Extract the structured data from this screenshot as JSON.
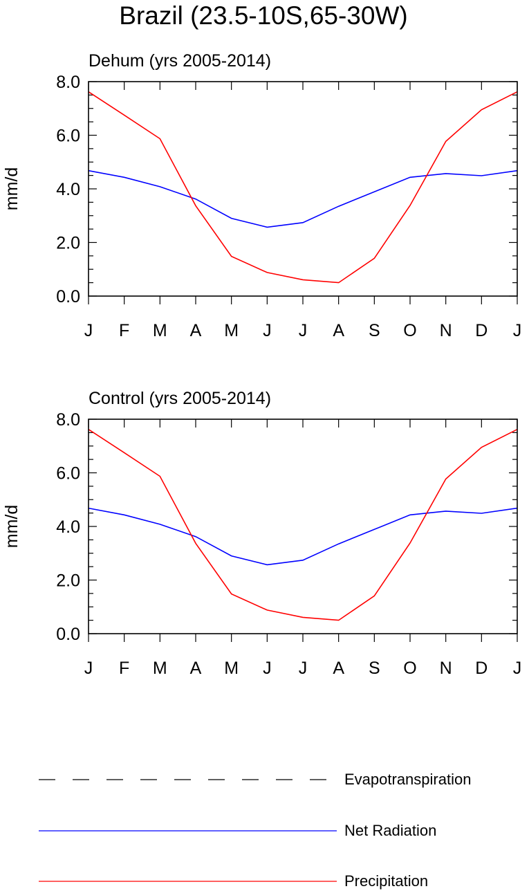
{
  "figure": {
    "title": "Brazil (23.5-10S,65-30W)"
  },
  "chart_data": [
    {
      "type": "line",
      "title": "Dehum (yrs 2005-2014)",
      "xlabel": "",
      "ylabel": "mm/d",
      "ylim": [
        0,
        8
      ],
      "yticks": [
        "0.0",
        "2.0",
        "4.0",
        "6.0",
        "8.0"
      ],
      "categories": [
        "J",
        "F",
        "M",
        "A",
        "M",
        "J",
        "J",
        "A",
        "S",
        "O",
        "N",
        "D",
        "J"
      ],
      "series": [
        {
          "name": "Net Radiation",
          "color": "#0000ff",
          "values": [
            4.68,
            4.43,
            4.08,
            3.62,
            2.9,
            2.57,
            2.74,
            3.35,
            3.89,
            4.43,
            4.57,
            4.49,
            4.68
          ]
        },
        {
          "name": "Precipitation",
          "color": "#ff0000",
          "values": [
            7.62,
            6.75,
            5.87,
            3.37,
            1.48,
            0.88,
            0.61,
            0.5,
            1.41,
            3.38,
            5.77,
            6.95,
            7.62
          ]
        }
      ]
    },
    {
      "type": "line",
      "title": "Control (yrs 2005-2014)",
      "xlabel": "",
      "ylabel": "mm/d",
      "ylim": [
        0,
        8
      ],
      "yticks": [
        "0.0",
        "2.0",
        "4.0",
        "6.0",
        "8.0"
      ],
      "categories": [
        "J",
        "F",
        "M",
        "A",
        "M",
        "J",
        "J",
        "A",
        "S",
        "O",
        "N",
        "D",
        "J"
      ],
      "series": [
        {
          "name": "Net Radiation",
          "color": "#0000ff",
          "values": [
            4.68,
            4.43,
            4.08,
            3.62,
            2.9,
            2.57,
            2.74,
            3.35,
            3.89,
            4.43,
            4.57,
            4.49,
            4.68
          ]
        },
        {
          "name": "Precipitation",
          "color": "#ff0000",
          "values": [
            7.62,
            6.75,
            5.87,
            3.37,
            1.48,
            0.88,
            0.61,
            0.5,
            1.41,
            3.38,
            5.77,
            6.95,
            7.62
          ]
        }
      ]
    }
  ],
  "legend": [
    {
      "label": "Evapotranspiration",
      "color": "#000000",
      "style": "dashed"
    },
    {
      "label": "Net Radiation",
      "color": "#0000ff",
      "style": "solid"
    },
    {
      "label": "Precipitation",
      "color": "#ff0000",
      "style": "solid"
    }
  ]
}
